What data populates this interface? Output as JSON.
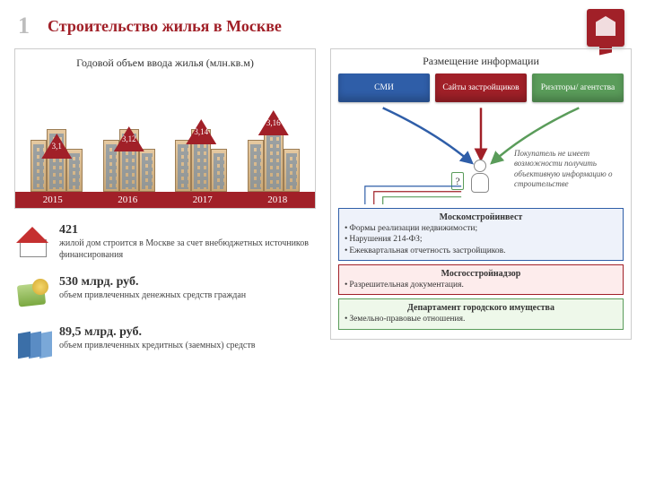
{
  "page_number": "1",
  "title": "Строительство жилья в Москве",
  "chart": {
    "title": "Годовой объем ввода жилья (млн.кв.м)",
    "years": [
      "2015",
      "2016",
      "2017",
      "2018"
    ],
    "values": [
      "3,1",
      "3,12",
      "3,14",
      "3,16"
    ],
    "arrow_heights": [
      14,
      22,
      30,
      40
    ],
    "arrow_color": "#a12028",
    "year_bar_color": "#a12028"
  },
  "stats": [
    {
      "big": "421",
      "small": "жилой дом строится в Москве за счет внебюджетных источников финансирования"
    },
    {
      "big": "530 млрд. руб.",
      "small": "объем привлеченных денежных средств граждан"
    },
    {
      "big": "89,5 млрд. руб.",
      "small": "объем привлеченных кредитных (заемных) средств"
    }
  ],
  "right": {
    "title": "Размещение информации",
    "tabs": [
      {
        "label": "СМИ",
        "color": "#2f5ea8"
      },
      {
        "label": "Сайты застройщиков",
        "color": "#a12028"
      },
      {
        "label": "Риэлторы/ агентства",
        "color": "#5a9c5a"
      }
    ],
    "note": "Покупатель не имеет возможности получить объективную информацию о строительстве",
    "orgs": [
      {
        "title": "Москомстройинвест",
        "border": "#2f5ea8",
        "bg": "#eef2fa",
        "items": [
          "Формы реализации недвижимости;",
          "Нарушения 214-ФЗ;",
          "Ежеквартальная отчетность застройщиков."
        ]
      },
      {
        "title": "Мосгосстройнадзор",
        "border": "#a12028",
        "bg": "#fdecec",
        "items": [
          "Разрешительная документация."
        ]
      },
      {
        "title": "Департамент городского имущества",
        "border": "#5a9c5a",
        "bg": "#eef8ea",
        "items": [
          "Земельно-правовые отношения."
        ]
      }
    ]
  }
}
